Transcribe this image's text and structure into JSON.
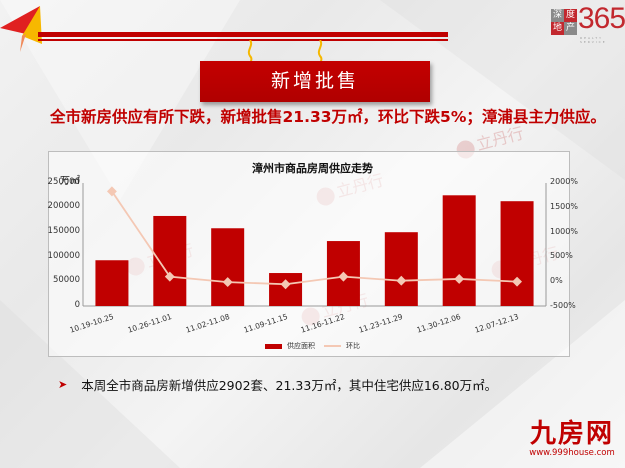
{
  "header": {
    "section_title": "新增批售",
    "logo": {
      "box1": "深",
      "box2": "度",
      "box3": "地",
      "box4": "产",
      "number": "365",
      "subtitle": "REALTY SERVICE"
    }
  },
  "headline": "全市新房供应有所下跌，新增批售21.33万㎡，环比下跌5%；漳浦县主力供应。",
  "chart": {
    "title": "漳州市商品房周供应走势",
    "y_unit": "万㎡",
    "left_ticks": [
      "250000",
      "200000",
      "150000",
      "100000",
      "50000",
      "0"
    ],
    "right_ticks": [
      "2000%",
      "1500%",
      "1000%",
      "500%",
      "0%",
      "-500%"
    ],
    "legend": {
      "bar": "供应面积",
      "line": "环比"
    },
    "colors": {
      "bar": "#c00000",
      "line": "#f4c8b4"
    }
  },
  "chart_data": {
    "type": "bar",
    "title": "漳州市商品房周供应走势",
    "xlabel": "",
    "ylabel": "万㎡",
    "ylim": [
      0,
      250000
    ],
    "y2lim": [
      -500,
      2000
    ],
    "categories": [
      "10.19-10.25",
      "10.26-11.01",
      "11.02-11.08",
      "11.09-11.15",
      "11.16-11.22",
      "11.23-11.29",
      "11.30-12.06",
      "12.07-12.13"
    ],
    "series": [
      {
        "name": "供应面积",
        "type": "bar",
        "axis": "left",
        "values": [
          93000,
          183000,
          158000,
          67000,
          132000,
          150000,
          225000,
          213000
        ]
      },
      {
        "name": "环比",
        "type": "line",
        "axis": "right",
        "unit": "%",
        "values": [
          1830,
          97,
          -14,
          -58,
          97,
          14,
          50,
          -5
        ]
      }
    ],
    "legend_position": "bottom",
    "grid": false
  },
  "bullet": "本周全市商品房新增供应2902套、21.33万㎡，其中住宅供应16.80万㎡。",
  "watermark": {
    "cn": "立丹行",
    "en": "LI DAN HANG"
  },
  "brand": {
    "name": "九房网",
    "url": "www.999house.com"
  }
}
